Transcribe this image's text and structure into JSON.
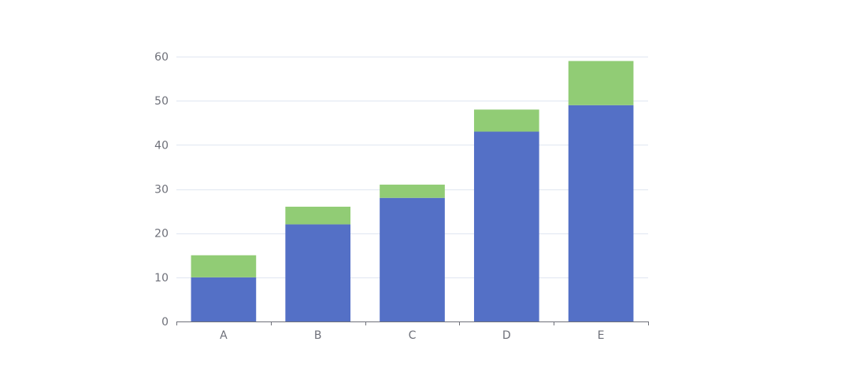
{
  "chart_data": {
    "type": "bar",
    "stacked": true,
    "categories": [
      "A",
      "B",
      "C",
      "D",
      "E"
    ],
    "series": [
      {
        "values": [
          10,
          22,
          28,
          43,
          49
        ],
        "color": "#5470c6"
      },
      {
        "values": [
          5,
          4,
          3,
          5,
          10
        ],
        "color": "#91cc75"
      }
    ],
    "ylim": [
      0,
      60
    ],
    "yticks": [
      "0",
      "10",
      "20",
      "30",
      "40",
      "50",
      "60"
    ],
    "grid": true,
    "legend": "none",
    "colors": {
      "grid": "#e0e6f1",
      "axis": "#6e7079",
      "label": "#6e7079"
    }
  }
}
